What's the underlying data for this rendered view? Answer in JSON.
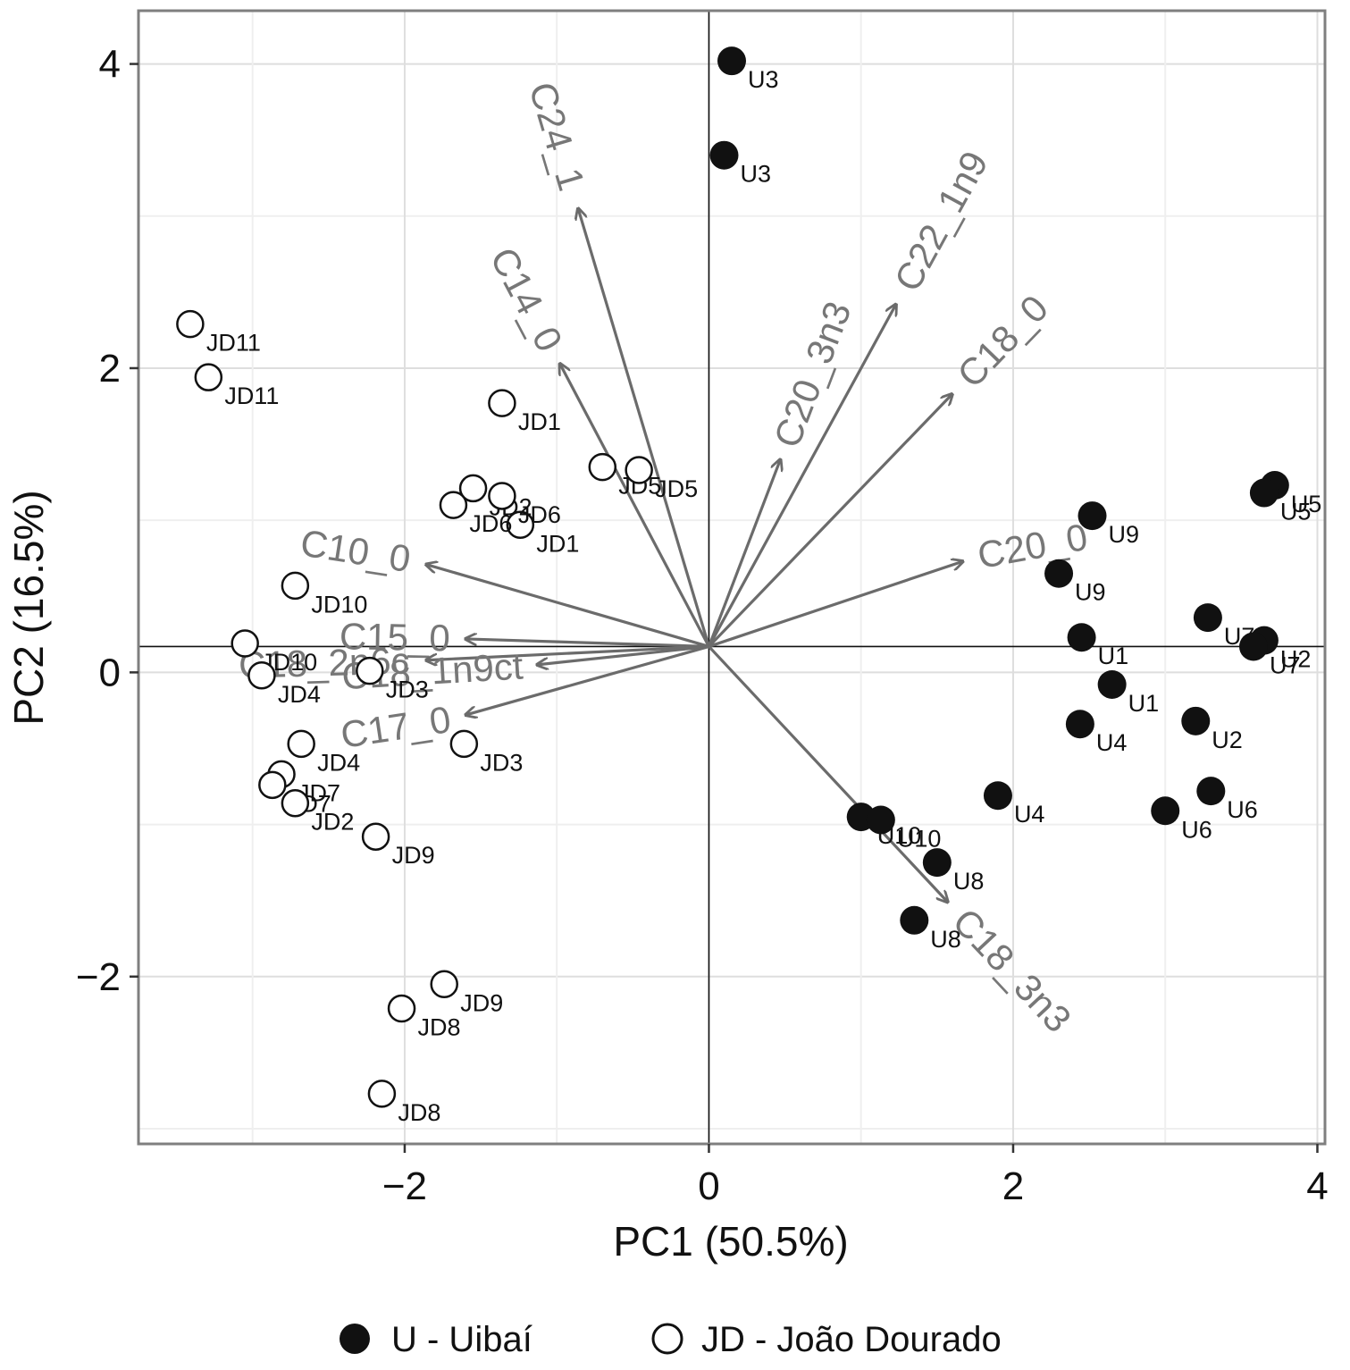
{
  "chart_data": {
    "type": "scatter",
    "subtype": "pca-biplot",
    "title": "",
    "xlabel": "PC1 (50.5%)",
    "ylabel": "PC2 (16.5%)",
    "xlim": [
      -3.75,
      4.05
    ],
    "ylim": [
      -3.1,
      4.35
    ],
    "xticks": [
      -2,
      0,
      2,
      4
    ],
    "xtick_labels": [
      "−2",
      "0",
      "2",
      "4"
    ],
    "yticks": [
      -2,
      0,
      2,
      4
    ],
    "ytick_labels": [
      "−2",
      "0",
      "2",
      "4"
    ],
    "grid": true,
    "series": [
      {
        "name": "U - Uibaí",
        "marker": "filled-circle",
        "color": "#111111",
        "points": [
          {
            "label": "U3",
            "x": 0.15,
            "y": 4.02
          },
          {
            "label": "U3",
            "x": 0.1,
            "y": 3.4
          },
          {
            "label": "U5",
            "x": 3.72,
            "y": 1.23
          },
          {
            "label": "U5",
            "x": 3.65,
            "y": 1.18
          },
          {
            "label": "U9",
            "x": 2.52,
            "y": 1.03
          },
          {
            "label": "U9",
            "x": 2.3,
            "y": 0.65
          },
          {
            "label": "U7",
            "x": 3.28,
            "y": 0.36
          },
          {
            "label": "U2",
            "x": 3.65,
            "y": 0.21
          },
          {
            "label": "U7",
            "x": 3.58,
            "y": 0.17
          },
          {
            "label": "U1",
            "x": 2.45,
            "y": 0.23
          },
          {
            "label": "U1",
            "x": 2.65,
            "y": -0.08
          },
          {
            "label": "U4",
            "x": 2.44,
            "y": -0.34
          },
          {
            "label": "U2",
            "x": 3.2,
            "y": -0.32
          },
          {
            "label": "U6",
            "x": 3.3,
            "y": -0.78
          },
          {
            "label": "U6",
            "x": 3.0,
            "y": -0.91
          },
          {
            "label": "U4",
            "x": 1.9,
            "y": -0.81
          },
          {
            "label": "U10",
            "x": 1.0,
            "y": -0.95
          },
          {
            "label": "U10",
            "x": 1.13,
            "y": -0.97
          },
          {
            "label": "U8",
            "x": 1.5,
            "y": -1.25
          },
          {
            "label": "U8",
            "x": 1.35,
            "y": -1.63
          }
        ]
      },
      {
        "name": "JD - João Dourado",
        "marker": "open-circle",
        "color": "#111111",
        "points": [
          {
            "label": "JD11",
            "x": -3.41,
            "y": 2.29
          },
          {
            "label": "JD11",
            "x": -3.29,
            "y": 1.94
          },
          {
            "label": "JD1",
            "x": -1.36,
            "y": 1.77
          },
          {
            "label": "JD1",
            "x": -1.24,
            "y": 0.97
          },
          {
            "label": "JD5",
            "x": -0.7,
            "y": 1.35
          },
          {
            "label": "JD5",
            "x": -0.46,
            "y": 1.33
          },
          {
            "label": "JD2",
            "x": -1.55,
            "y": 1.21
          },
          {
            "label": "JD6",
            "x": -1.36,
            "y": 1.16
          },
          {
            "label": "JD6",
            "x": -1.68,
            "y": 1.1
          },
          {
            "label": "JD10",
            "x": -2.72,
            "y": 0.57
          },
          {
            "label": "JD10",
            "x": -3.05,
            "y": 0.19
          },
          {
            "label": "JD4",
            "x": -2.94,
            "y": -0.02
          },
          {
            "label": "JD3",
            "x": -2.23,
            "y": 0.01
          },
          {
            "label": "JD3",
            "x": -1.61,
            "y": -0.47
          },
          {
            "label": "JD4",
            "x": -2.68,
            "y": -0.47
          },
          {
            "label": "JD7",
            "x": -2.81,
            "y": -0.67
          },
          {
            "label": "JD7",
            "x": -2.87,
            "y": -0.74
          },
          {
            "label": "JD2",
            "x": -2.72,
            "y": -0.86
          },
          {
            "label": "JD9",
            "x": -2.19,
            "y": -1.08
          },
          {
            "label": "JD9",
            "x": -1.74,
            "y": -2.05
          },
          {
            "label": "JD8",
            "x": -2.02,
            "y": -2.21
          },
          {
            "label": "JD8",
            "x": -2.15,
            "y": -2.77
          }
        ]
      }
    ],
    "vectors": {
      "origin": [
        0.0,
        0.17
      ],
      "color": "#6b6b6b",
      "items": [
        {
          "label": "C24_1",
          "x": -0.86,
          "y": 3.05
        },
        {
          "label": "C22_1n9",
          "x": 1.23,
          "y": 2.42
        },
        {
          "label": "C14_0",
          "x": -0.98,
          "y": 2.03
        },
        {
          "label": "C20_3n3",
          "x": 0.47,
          "y": 1.4
        },
        {
          "label": "C18_0",
          "x": 1.6,
          "y": 1.83
        },
        {
          "label": "C20_0",
          "x": 1.67,
          "y": 0.73
        },
        {
          "label": "C10_0",
          "x": -1.86,
          "y": 0.71
        },
        {
          "label": "C15_0",
          "x": -1.6,
          "y": 0.22
        },
        {
          "label": "C18_2n6c",
          "x": -1.86,
          "y": 0.08
        },
        {
          "label": "C18_1n9ct",
          "x": -1.13,
          "y": 0.05
        },
        {
          "label": "C17_0",
          "x": -1.6,
          "y": -0.28
        },
        {
          "label": "C18_3n3",
          "x": 1.57,
          "y": -1.51
        }
      ]
    },
    "legend": {
      "position": "bottom",
      "entries": [
        {
          "label": "U - Uibaí",
          "marker": "filled-circle"
        },
        {
          "label": "JD - João Dourado",
          "marker": "open-circle"
        }
      ]
    }
  }
}
